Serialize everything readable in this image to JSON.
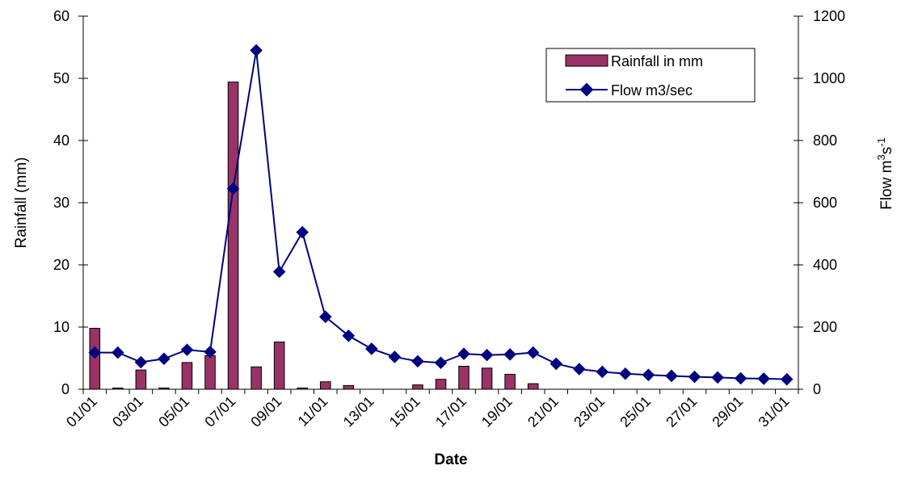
{
  "chart_data": {
    "type": "bar+line",
    "xlabel": "Date",
    "ylabel_left": "Rainfall (mm)",
    "ylabel_right": "Flow  m",
    "ylabel_right_sup1": "3",
    "ylabel_right_mid": "s",
    "ylabel_right_sup2": "-1",
    "ylim_left": [
      0,
      60
    ],
    "ylim_right": [
      0,
      1200
    ],
    "yticks_left": [
      "0",
      "10",
      "20",
      "30",
      "40",
      "50",
      "60"
    ],
    "yticks_right": [
      "0",
      "200",
      "400",
      "600",
      "800",
      "1000",
      "1200"
    ],
    "categories": [
      "01/01",
      "02/01",
      "03/01",
      "04/01",
      "05/01",
      "06/01",
      "07/01",
      "08/01",
      "09/01",
      "10/01",
      "11/01",
      "12/01",
      "13/01",
      "14/01",
      "15/01",
      "16/01",
      "17/01",
      "18/01",
      "19/01",
      "20/01",
      "21/01",
      "22/01",
      "23/01",
      "24/01",
      "25/01",
      "26/01",
      "27/01",
      "28/01",
      "29/01",
      "30/01",
      "31/01"
    ],
    "xtick_labels": [
      "01/01",
      "03/01",
      "05/01",
      "07/01",
      "09/01",
      "11/01",
      "13/01",
      "15/01",
      "17/01",
      "19/01",
      "21/01",
      "23/01",
      "25/01",
      "27/01",
      "29/01",
      "31/01"
    ],
    "series": [
      {
        "name": "Rainfall in mm",
        "kind": "bar",
        "axis": "left",
        "color": "#993366",
        "values": [
          9.8,
          0.2,
          3.1,
          0.2,
          4.3,
          5.4,
          49.4,
          3.6,
          7.6,
          0.2,
          1.2,
          0.6,
          0,
          0,
          0.7,
          1.6,
          3.7,
          3.4,
          2.4,
          0.9,
          0,
          0,
          0,
          0,
          0,
          0,
          0,
          0,
          0,
          0,
          0
        ]
      },
      {
        "name": "Flow m3/sec",
        "kind": "line",
        "axis": "right",
        "color": "#000080",
        "values": [
          118,
          118,
          87,
          98,
          127,
          120,
          645,
          1090,
          378,
          505,
          233,
          172,
          130,
          104,
          90,
          85,
          114,
          110,
          112,
          118,
          82,
          65,
          56,
          50,
          46,
          43,
          40,
          38,
          35,
          34,
          32
        ]
      }
    ],
    "legend_position": "top-right",
    "grid": false
  }
}
